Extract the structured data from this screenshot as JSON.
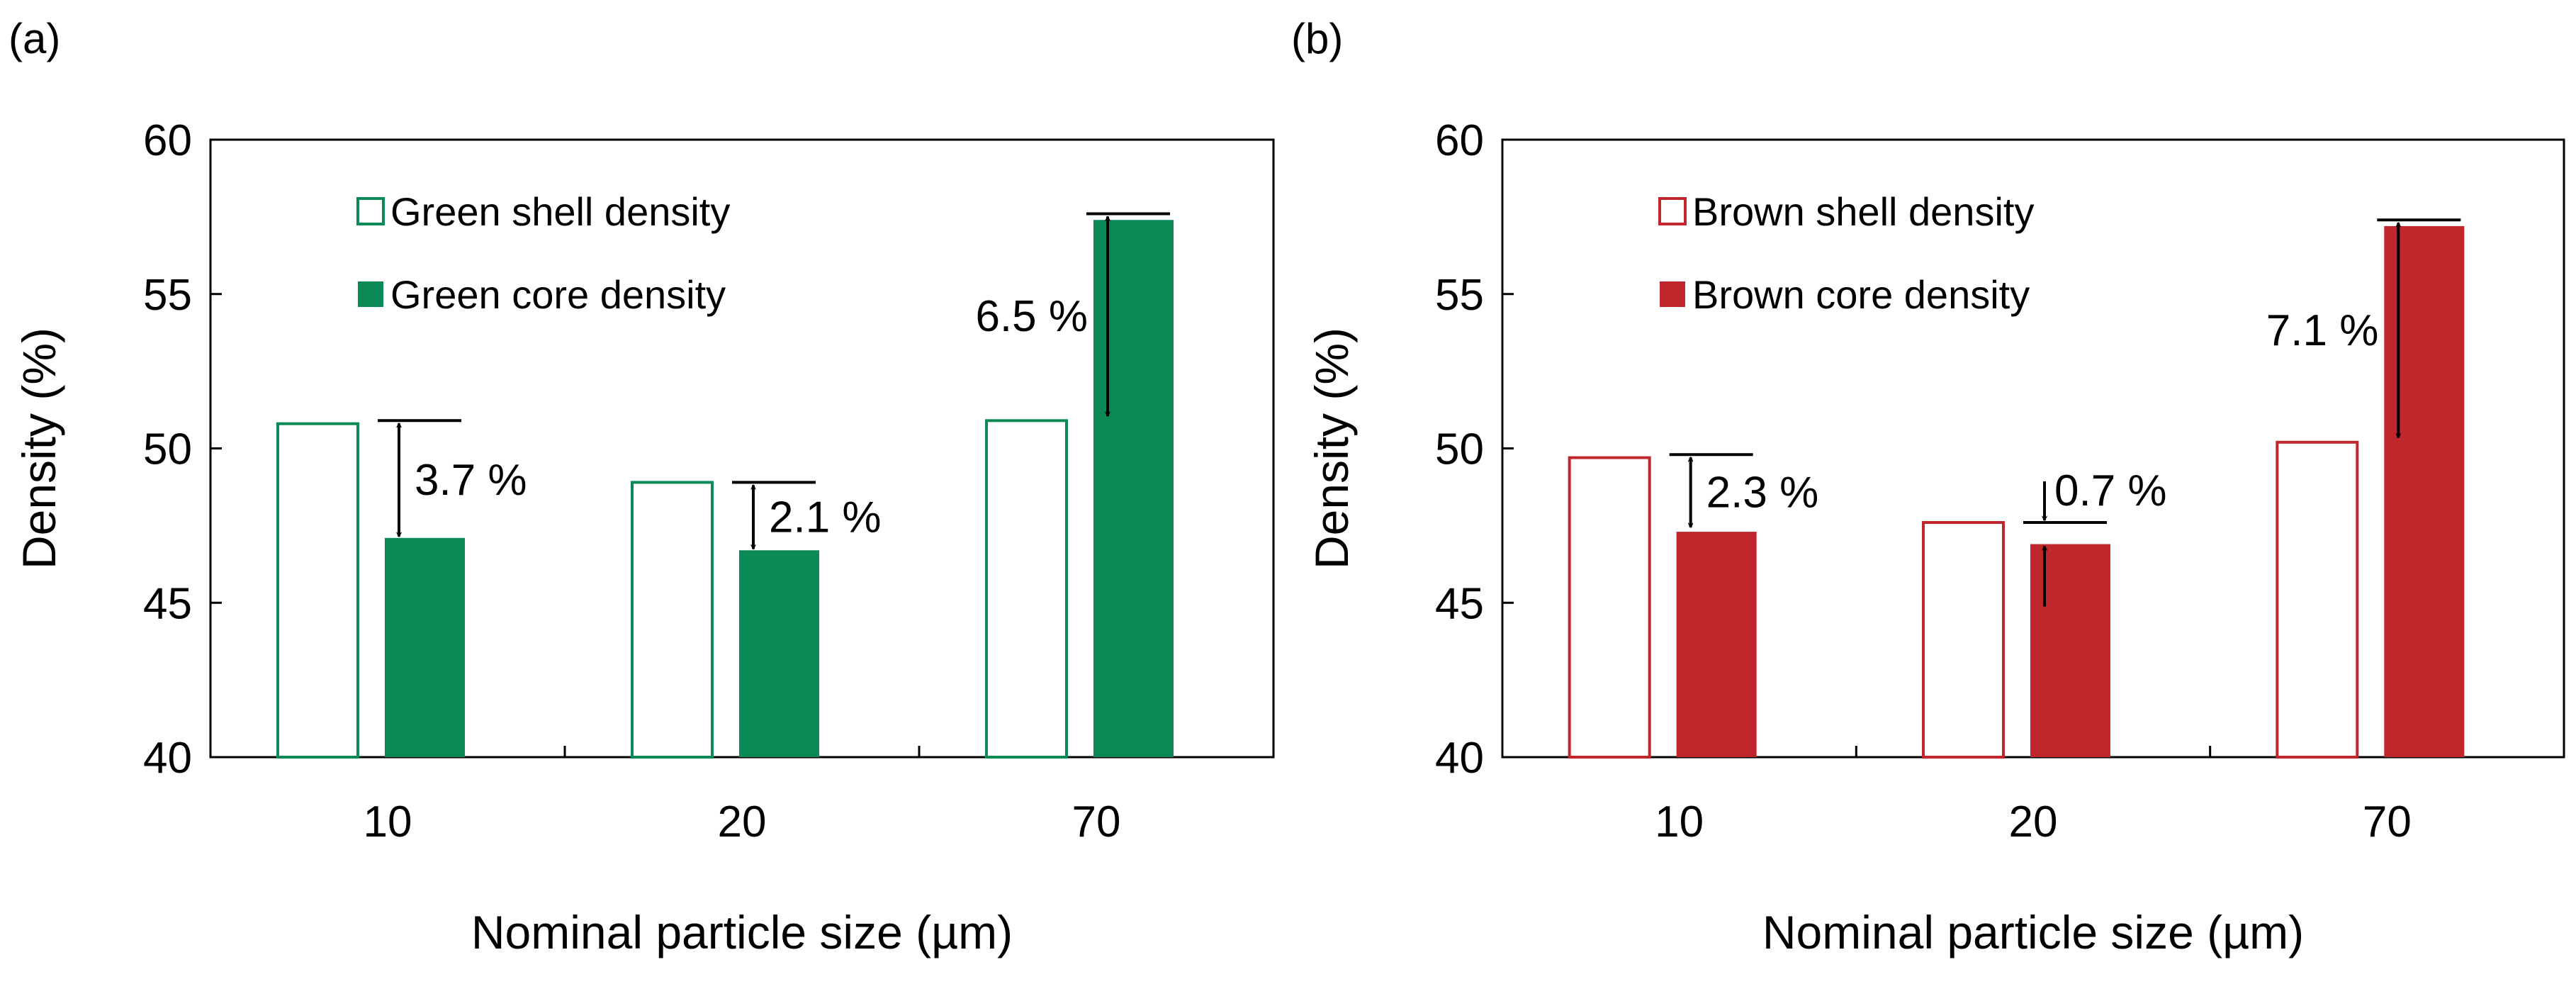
{
  "chart_data": [
    {
      "type": "bar",
      "panel_label": "(a)",
      "categories": [
        "10",
        "20",
        "70"
      ],
      "series": [
        {
          "name": "Green shell density",
          "values": [
            50.8,
            48.9,
            50.9
          ],
          "style": "outline",
          "color": "#0b8a57"
        },
        {
          "name": "Green core density",
          "values": [
            47.1,
            46.7,
            57.4
          ],
          "style": "filled",
          "color": "#0b8a57"
        }
      ],
      "xlabel": "Nominal particle size (µm)",
      "ylabel": "Density (%)",
      "ylim": [
        40,
        60
      ],
      "yticks": [
        40,
        45,
        50,
        55,
        60
      ],
      "grid": false,
      "legend_position": "top-left",
      "annotations": [
        {
          "category_index": 0,
          "text": "3.7 %",
          "from": 50.9,
          "to": 47.1,
          "label_side": "right",
          "arrow_style": "double"
        },
        {
          "category_index": 1,
          "text": "2.1 %",
          "from": 48.9,
          "to": 46.7,
          "label_side": "right",
          "arrow_style": "double"
        },
        {
          "category_index": 2,
          "text": "6.5 %",
          "from": 57.6,
          "to": 51.0,
          "label_side": "left",
          "arrow_style": "double"
        }
      ]
    },
    {
      "type": "bar",
      "panel_label": "(b)",
      "categories": [
        "10",
        "20",
        "70"
      ],
      "series": [
        {
          "name": "Brown shell density",
          "values": [
            49.7,
            47.6,
            50.2
          ],
          "style": "outline",
          "color": "#c0272d"
        },
        {
          "name": "Brown core density",
          "values": [
            47.3,
            46.9,
            57.2
          ],
          "style": "filled",
          "color": "#c0272d"
        }
      ],
      "xlabel": "Nominal particle size (µm)",
      "ylabel": "Density (%)",
      "ylim": [
        40,
        60
      ],
      "yticks": [
        40,
        45,
        50,
        55,
        60
      ],
      "grid": false,
      "legend_position": "top-left",
      "annotations": [
        {
          "category_index": 0,
          "text": "2.3 %",
          "from": 49.8,
          "to": 47.4,
          "label_side": "right",
          "arrow_style": "double"
        },
        {
          "category_index": 1,
          "text": "0.7 %",
          "from": 47.6,
          "to": 46.9,
          "label_side": "right",
          "arrow_style": "inward"
        },
        {
          "category_index": 2,
          "text": "7.1 %",
          "from": 57.4,
          "to": 50.3,
          "label_side": "left",
          "arrow_style": "double"
        }
      ]
    }
  ]
}
